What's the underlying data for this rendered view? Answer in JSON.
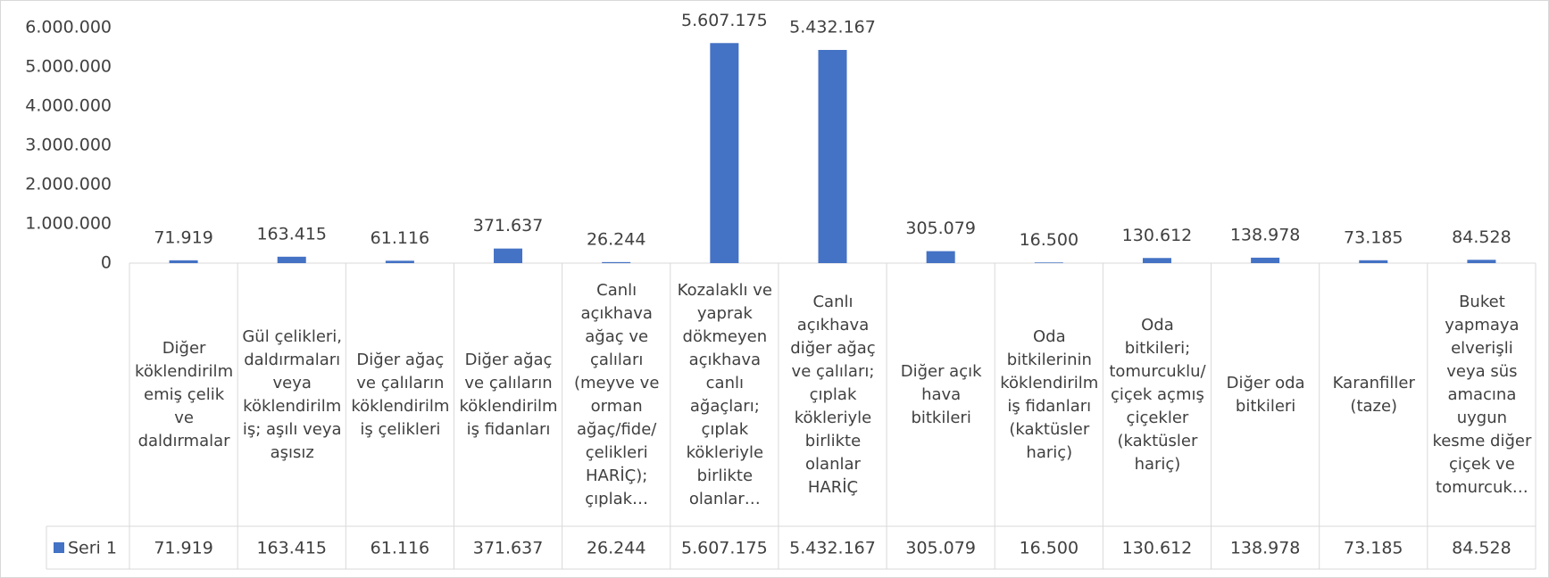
{
  "chart_data": {
    "type": "bar",
    "categories": [
      "Diğer köklendirilmemiş çelik ve daldırmalar",
      "Gül çelikleri, daldırmaları veya köklendirilmiş; aşılı veya aşısız",
      "Diğer ağaç ve çalıların köklendirilmiş çelikleri",
      "Diğer ağaç ve çalıların köklendirilmiş fidanları",
      "Canlı açıkhava ağaç ve çalıları (meyve ve orman ağaç/fide/çelikleri HARİÇ); çıplak…",
      "Kozalaklı ve yaprak dökmeyen açıkhava canlı ağaçları; çıplak kökleriyle birlikte olanlar…",
      "Canlı açıkhava diğer ağaç ve çalıları; çıplak kökleriyle birlikte olanlar HARİÇ",
      "Diğer açık hava bitkileri",
      "Oda bitkilerinin köklendirilmiş fidanları (kaktüsler hariç)",
      "Oda bitkileri; tomurcuklu/çiçek açmış çiçekler (kaktüsler hariç)",
      "Diğer oda bitkileri",
      "Karanfiller (taze)",
      "Buket yapmaya elverişli veya süs amacına uygun kesme diğer çiçek ve tomurcuk…"
    ],
    "series": [
      {
        "name": "Seri 1",
        "color": "#4472c4",
        "values": [
          71919,
          163415,
          61116,
          371637,
          26244,
          5607175,
          5432167,
          305079,
          16500,
          130612,
          138978,
          73185,
          84528
        ],
        "value_labels": [
          "71.919",
          "163.415",
          "61.116",
          "371.637",
          "26.244",
          "5.607.175",
          "5.432.167",
          "305.079",
          "16.500",
          "130.612",
          "138.978",
          "73.185",
          "84.528"
        ]
      }
    ],
    "ylim": [
      0,
      6000000
    ],
    "yticks": [
      0,
      {
        "value": 1000000,
        "label": "1.000.000"
      },
      {
        "value": 2000000,
        "label": "2.000.000"
      },
      {
        "value": 3000000,
        "label": "3.000.000"
      },
      {
        "value": 4000000,
        "label": "4.000.000"
      },
      {
        "value": 5000000,
        "label": "5.000.000"
      },
      {
        "value": 6000000,
        "label": "6.000.000"
      }
    ],
    "grid": false
  }
}
